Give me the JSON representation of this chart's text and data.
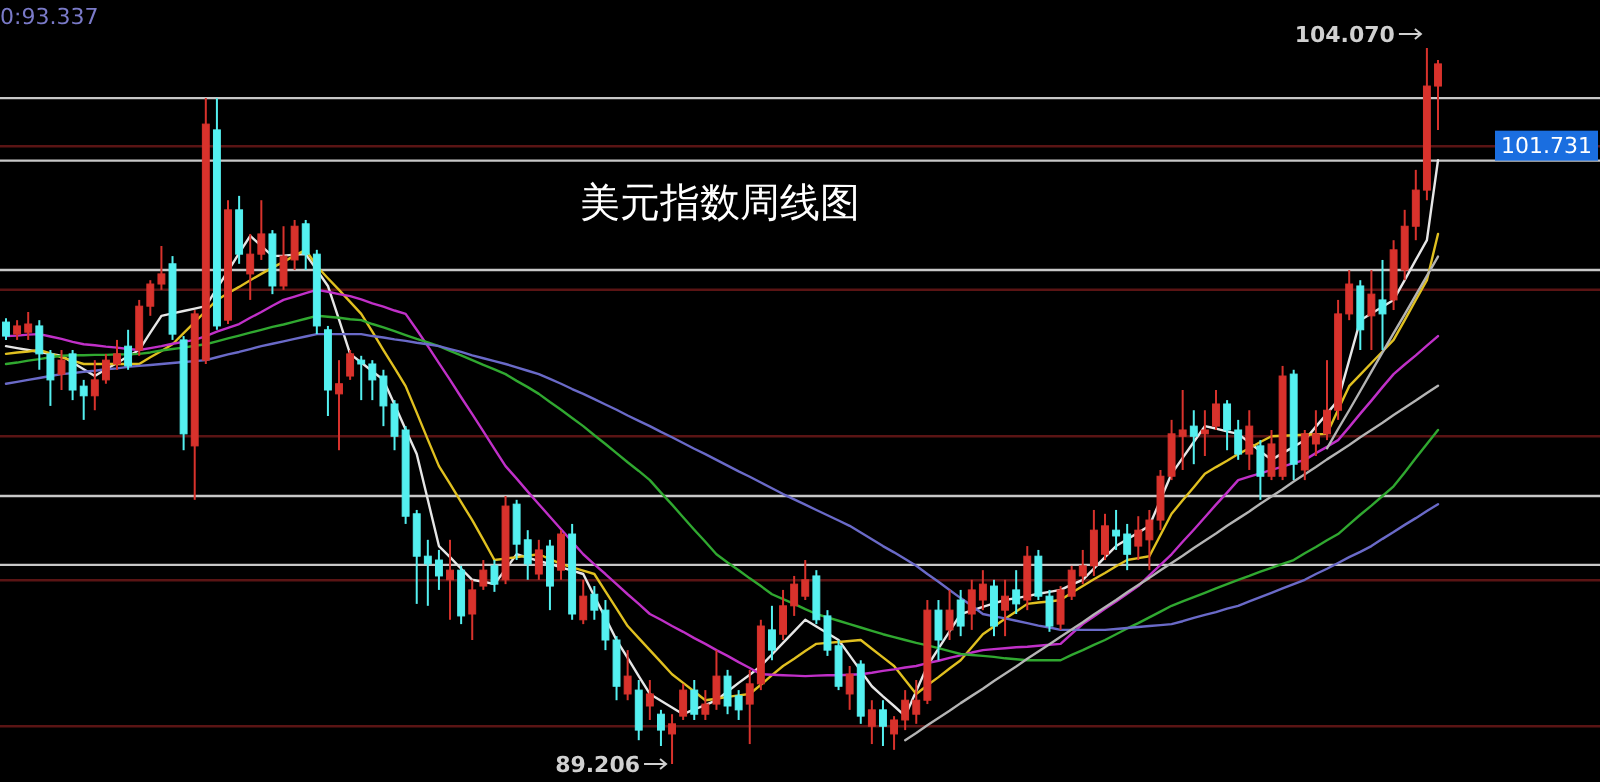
{
  "chart_data": {
    "type": "candlestick",
    "title": "美元指数周线图",
    "annotations": [
      "0:93.337",
      "104.070",
      "89.206"
    ],
    "categories": [
      null,
      null,
      null,
      null,
      null,
      null,
      null,
      null,
      null,
      null,
      null,
      null,
      null,
      null,
      null,
      null,
      null,
      null,
      null,
      null,
      null,
      null,
      null,
      null,
      null,
      null,
      null,
      null,
      null,
      null,
      null,
      null,
      null,
      null,
      null,
      null,
      null,
      null,
      null,
      null,
      null,
      null,
      null,
      null,
      null,
      null,
      null,
      null,
      null,
      null,
      null,
      null,
      null,
      null,
      null,
      null,
      null,
      null,
      null,
      null,
      null,
      null,
      null,
      null,
      null,
      null,
      null,
      null,
      null,
      null,
      null,
      null,
      null,
      null,
      null,
      null,
      null,
      null,
      null,
      null,
      null,
      null,
      null,
      null,
      null,
      null,
      null,
      null,
      null,
      null,
      null,
      null,
      null,
      null,
      null,
      null,
      null,
      null,
      null,
      null,
      null,
      null,
      null,
      null,
      null,
      null,
      null,
      null,
      null,
      null,
      null,
      null,
      null,
      null,
      null,
      null,
      null,
      null,
      null,
      null,
      null,
      null,
      null,
      null,
      null,
      null,
      null,
      null,
      null,
      null
    ],
    "ohlc": [
      [
        98.38,
        98.46,
        98.01,
        98.09
      ],
      [
        98.13,
        98.42,
        98.01,
        98.3
      ],
      [
        98.17,
        98.59,
        98.01,
        98.34
      ],
      [
        98.3,
        98.42,
        97.39,
        97.72
      ],
      [
        97.72,
        97.8,
        96.64,
        97.18
      ],
      [
        97.3,
        97.8,
        96.97,
        97.59
      ],
      [
        97.72,
        97.8,
        96.76,
        96.97
      ],
      [
        97.05,
        97.18,
        96.35,
        96.85
      ],
      [
        96.85,
        97.59,
        96.55,
        97.18
      ],
      [
        97.18,
        97.72,
        97.1,
        97.59
      ],
      [
        97.51,
        98.01,
        97.39,
        97.72
      ],
      [
        97.88,
        98.22,
        97.39,
        97.47
      ],
      [
        97.8,
        98.84,
        97.68,
        98.71
      ],
      [
        98.71,
        99.25,
        98.51,
        99.17
      ],
      [
        99.17,
        99.96,
        99.05,
        99.38
      ],
      [
        99.59,
        99.75,
        98.01,
        98.13
      ],
      [
        98.01,
        98.09,
        95.72,
        96.06
      ],
      [
        95.81,
        98.63,
        94.69,
        98.55
      ],
      [
        97.59,
        103.03,
        97.51,
        102.49
      ],
      [
        102.37,
        103.03,
        98.22,
        98.3
      ],
      [
        98.42,
        100.91,
        98.34,
        100.71
      ],
      [
        100.71,
        101.0,
        99.59,
        99.79
      ],
      [
        99.38,
        100.21,
        98.84,
        99.79
      ],
      [
        99.79,
        100.91,
        99.67,
        100.21
      ],
      [
        100.21,
        100.29,
        98.96,
        99.13
      ],
      [
        99.13,
        100.37,
        99.05,
        99.75
      ],
      [
        99.67,
        100.5,
        99.46,
        100.37
      ],
      [
        100.42,
        100.5,
        99.46,
        99.79
      ],
      [
        99.79,
        99.88,
        98.13,
        98.3
      ],
      [
        98.22,
        98.3,
        96.43,
        96.97
      ],
      [
        96.89,
        97.59,
        95.72,
        97.1
      ],
      [
        97.26,
        97.8,
        97.18,
        97.72
      ],
      [
        97.59,
        97.68,
        96.76,
        97.51
      ],
      [
        97.51,
        97.59,
        96.76,
        97.18
      ],
      [
        97.26,
        97.39,
        96.22,
        96.64
      ],
      [
        96.68,
        96.76,
        95.72,
        96.01
      ],
      [
        96.14,
        96.22,
        94.19,
        94.35
      ],
      [
        94.4,
        94.48,
        92.53,
        93.52
      ],
      [
        93.52,
        93.86,
        92.49,
        93.36
      ],
      [
        93.44,
        93.65,
        92.82,
        93.11
      ],
      [
        93.03,
        93.86,
        92.2,
        93.23
      ],
      [
        93.23,
        93.32,
        92.11,
        92.28
      ],
      [
        92.32,
        93.03,
        91.78,
        92.82
      ],
      [
        92.9,
        93.44,
        92.82,
        93.23
      ],
      [
        93.32,
        93.44,
        92.78,
        92.94
      ],
      [
        93.03,
        94.77,
        92.94,
        94.56
      ],
      [
        94.6,
        94.69,
        93.44,
        93.77
      ],
      [
        93.86,
        94.06,
        93.03,
        93.36
      ],
      [
        93.15,
        93.86,
        93.03,
        93.65
      ],
      [
        93.73,
        93.86,
        92.4,
        92.9
      ],
      [
        93.23,
        94.06,
        93.03,
        93.98
      ],
      [
        93.98,
        94.19,
        92.2,
        92.32
      ],
      [
        92.2,
        93.03,
        92.11,
        92.69
      ],
      [
        92.73,
        92.9,
        92.2,
        92.4
      ],
      [
        92.4,
        92.61,
        91.57,
        91.78
      ],
      [
        91.78,
        91.86,
        90.53,
        90.82
      ],
      [
        90.66,
        91.57,
        90.53,
        91.03
      ],
      [
        90.74,
        90.95,
        89.7,
        89.91
      ],
      [
        90.41,
        90.95,
        90.12,
        90.66
      ],
      [
        90.24,
        90.33,
        89.58,
        89.91
      ],
      [
        89.83,
        90.24,
        89.206,
        90.04
      ],
      [
        90.2,
        90.87,
        90.12,
        90.74
      ],
      [
        90.74,
        90.95,
        90.12,
        90.24
      ],
      [
        90.24,
        90.74,
        90.12,
        90.45
      ],
      [
        90.45,
        91.57,
        90.33,
        91.03
      ],
      [
        91.03,
        91.16,
        90.24,
        90.41
      ],
      [
        90.62,
        90.74,
        90.12,
        90.33
      ],
      [
        90.45,
        91.16,
        89.62,
        90.87
      ],
      [
        90.87,
        92.2,
        90.74,
        92.07
      ],
      [
        91.99,
        92.49,
        91.36,
        91.57
      ],
      [
        91.9,
        92.82,
        91.78,
        92.49
      ],
      [
        92.49,
        93.11,
        92.28,
        92.94
      ],
      [
        92.69,
        93.44,
        92.61,
        93.03
      ],
      [
        93.11,
        93.23,
        92.11,
        92.2
      ],
      [
        92.28,
        92.4,
        91.45,
        91.57
      ],
      [
        91.66,
        91.78,
        90.74,
        90.82
      ],
      [
        90.66,
        91.24,
        90.33,
        91.07
      ],
      [
        91.28,
        91.36,
        90.04,
        90.2
      ],
      [
        89.99,
        90.53,
        89.62,
        90.33
      ],
      [
        90.33,
        90.53,
        89.58,
        89.99
      ],
      [
        89.83,
        90.2,
        89.5,
        90.12
      ],
      [
        90.12,
        90.74,
        89.91,
        90.53
      ],
      [
        90.24,
        90.95,
        90.04,
        90.53
      ],
      [
        90.53,
        92.61,
        90.45,
        92.4
      ],
      [
        92.4,
        92.61,
        91.36,
        91.78
      ],
      [
        91.99,
        92.82,
        91.78,
        92.4
      ],
      [
        92.61,
        92.82,
        91.86,
        92.07
      ],
      [
        92.32,
        93.03,
        91.99,
        92.82
      ],
      [
        92.61,
        93.23,
        92.4,
        92.94
      ],
      [
        92.9,
        93.03,
        91.86,
        92.07
      ],
      [
        92.4,
        93.03,
        91.86,
        92.69
      ],
      [
        92.82,
        93.23,
        92.32,
        92.53
      ],
      [
        92.61,
        93.73,
        92.4,
        93.52
      ],
      [
        93.52,
        93.65,
        92.61,
        92.69
      ],
      [
        92.69,
        92.82,
        91.95,
        92.07
      ],
      [
        92.11,
        92.9,
        91.99,
        92.82
      ],
      [
        92.69,
        93.32,
        92.61,
        93.23
      ],
      [
        93.11,
        93.65,
        92.94,
        93.32
      ],
      [
        93.32,
        94.48,
        93.11,
        94.06
      ],
      [
        93.56,
        94.4,
        93.44,
        94.15
      ],
      [
        94.06,
        94.48,
        93.65,
        93.94
      ],
      [
        93.98,
        94.19,
        93.23,
        93.56
      ],
      [
        93.73,
        94.35,
        93.44,
        94.06
      ],
      [
        93.86,
        94.48,
        93.23,
        94.27
      ],
      [
        94.27,
        95.31,
        94.06,
        95.18
      ],
      [
        95.18,
        96.35,
        95.1,
        96.06
      ],
      [
        96.01,
        96.97,
        95.31,
        96.14
      ],
      [
        96.22,
        96.55,
        95.43,
        96.01
      ],
      [
        96.06,
        96.55,
        95.6,
        96.14
      ],
      [
        96.22,
        96.97,
        96.14,
        96.68
      ],
      [
        96.68,
        96.76,
        95.72,
        96.14
      ],
      [
        96.14,
        96.35,
        95.52,
        95.64
      ],
      [
        95.64,
        96.55,
        95.31,
        96.22
      ],
      [
        95.81,
        95.93,
        94.69,
        95.18
      ],
      [
        95.18,
        96.14,
        95.1,
        95.85
      ],
      [
        95.18,
        97.47,
        95.1,
        97.26
      ],
      [
        97.3,
        97.39,
        95.1,
        95.43
      ],
      [
        95.31,
        96.14,
        95.1,
        96.06
      ],
      [
        95.85,
        96.55,
        95.6,
        96.06
      ],
      [
        96.06,
        97.59,
        95.93,
        96.55
      ],
      [
        96.55,
        98.84,
        96.35,
        98.55
      ],
      [
        98.55,
        99.46,
        98.42,
        99.17
      ],
      [
        99.13,
        99.25,
        97.8,
        98.22
      ],
      [
        98.51,
        99.46,
        97.8,
        98.96
      ],
      [
        98.84,
        99.67,
        97.8,
        98.55
      ],
      [
        98.84,
        100.08,
        98.63,
        99.88
      ],
      [
        99.46,
        100.71,
        99.25,
        100.37
      ],
      [
        100.37,
        101.54,
        100.08,
        101.12
      ],
      [
        101.12,
        104.07,
        100.91,
        103.28
      ],
      [
        103.28,
        103.82,
        102.37,
        103.74
      ]
    ],
    "colors": [
      "#54f0f0",
      "#d8322c",
      "#d8322c",
      "#54f0f0",
      "#54f0f0",
      "#d8322c",
      "#54f0f0",
      "#54f0f0",
      "#d8322c",
      "#d8322c",
      "#d8322c",
      "#54f0f0",
      "#d8322c",
      "#d8322c",
      "#d8322c",
      "#54f0f0",
      "#54f0f0",
      "#d8322c",
      "#d8322c",
      "#54f0f0",
      "#d8322c",
      "#54f0f0",
      "#d8322c",
      "#d8322c",
      "#54f0f0",
      "#d8322c",
      "#d8322c",
      "#54f0f0",
      "#54f0f0",
      "#54f0f0",
      "#d8322c",
      "#d8322c",
      "#54f0f0",
      "#54f0f0",
      "#54f0f0",
      "#54f0f0",
      "#54f0f0",
      "#54f0f0",
      "#54f0f0",
      "#54f0f0",
      "#d8322c",
      "#54f0f0",
      "#d8322c",
      "#d8322c",
      "#54f0f0",
      "#d8322c",
      "#54f0f0",
      "#54f0f0",
      "#d8322c",
      "#54f0f0",
      "#d8322c",
      "#54f0f0",
      "#d8322c",
      "#54f0f0",
      "#54f0f0",
      "#54f0f0",
      "#d8322c",
      "#54f0f0",
      "#d8322c",
      "#54f0f0",
      "#d8322c",
      "#d8322c",
      "#54f0f0",
      "#d8322c",
      "#d8322c",
      "#54f0f0",
      "#54f0f0",
      "#d8322c",
      "#d8322c",
      "#54f0f0",
      "#d8322c",
      "#d8322c",
      "#d8322c",
      "#54f0f0",
      "#54f0f0",
      "#54f0f0",
      "#d8322c",
      "#54f0f0",
      "#d8322c",
      "#54f0f0",
      "#d8322c",
      "#d8322c",
      "#d8322c",
      "#d8322c",
      "#54f0f0",
      "#d8322c",
      "#54f0f0",
      "#d8322c",
      "#d8322c",
      "#54f0f0",
      "#d8322c",
      "#54f0f0",
      "#d8322c",
      "#54f0f0",
      "#54f0f0",
      "#d8322c",
      "#d8322c",
      "#d8322c",
      "#d8322c",
      "#d8322c",
      "#54f0f0",
      "#54f0f0",
      "#d8322c",
      "#d8322c",
      "#d8322c",
      "#d8322c",
      "#d8322c",
      "#54f0f0",
      "#d8322c",
      "#d8322c",
      "#54f0f0",
      "#54f0f0",
      "#d8322c",
      "#54f0f0",
      "#d8322c",
      "#d8322c",
      "#54f0f0",
      "#d8322c",
      "#d8322c",
      "#d8322c",
      "#d8322c",
      "#d8322c",
      "#54f0f0",
      "#d8322c",
      "#54f0f0",
      "#d8322c",
      "#d8322c",
      "#d8322c",
      "#d8322c",
      "#d8322c"
    ],
    "series": [
      {
        "type": "line",
        "color": "#e6e6e6",
        "values": [
          97.88,
          97.84,
          97.8,
          97.76,
          97.72,
          97.68,
          97.54,
          97.4,
          97.26,
          97.4,
          97.53,
          97.67,
          97.8,
          98.16,
          98.51,
          98.56,
          98.61,
          98.66,
          98.71,
          99.08,
          99.44,
          99.81,
          100.17,
          99.96,
          99.75,
          99.76,
          99.78,
          99.79,
          99.46,
          99.13,
          98.43,
          97.72,
          97.54,
          97.36,
          97.18,
          96.67,
          96.15,
          95.64,
          94.69,
          93.73,
          93.5,
          93.26,
          93.03,
          92.99,
          92.94,
          93.25,
          93.56,
          93.49,
          93.42,
          93.36,
          93.29,
          93.22,
          93.15,
          92.69,
          92.24,
          91.78,
          91.41,
          91.03,
          90.66,
          90.52,
          90.38,
          90.24,
          90.34,
          90.43,
          90.53,
          90.71,
          90.89,
          91.06,
          91.24,
          91.48,
          91.72,
          91.96,
          92.2,
          92.06,
          91.92,
          91.78,
          91.46,
          91.14,
          90.82,
          90.61,
          90.41,
          90.2,
          90.72,
          91.24,
          91.6,
          91.96,
          92.32,
          92.39,
          92.47,
          92.54,
          92.61,
          92.65,
          92.69,
          92.74,
          92.78,
          92.82,
          92.93,
          93.03,
          93.26,
          93.5,
          93.73,
          93.87,
          94.01,
          94.15,
          94.69,
          95.23,
          95.56,
          95.89,
          96.22,
          96.17,
          96.11,
          96.06,
          95.88,
          95.7,
          95.52,
          95.66,
          95.79,
          95.93,
          96.21,
          96.48,
          96.76,
          97.59,
          98.42,
          98.56,
          98.7,
          98.84,
          99.25,
          99.67,
          100.08,
          101.74
        ]
      },
      {
        "type": "line",
        "color": "#e0c020",
        "values": [
          97.72,
          97.75,
          97.77,
          97.8,
          97.73,
          97.65,
          97.58,
          97.51,
          97.51,
          97.51,
          97.51,
          97.51,
          97.51,
          97.65,
          97.78,
          97.92,
          98.15,
          98.38,
          98.61,
          98.84,
          98.98,
          99.11,
          99.25,
          99.38,
          99.51,
          99.63,
          99.76,
          99.88,
          99.54,
          99.29,
          99.05,
          98.8,
          98.55,
          98.18,
          97.8,
          97.43,
          97.05,
          96.5,
          95.94,
          95.39,
          95.02,
          94.64,
          94.27,
          93.86,
          93.44,
          93.47,
          93.5,
          93.53,
          93.56,
          93.46,
          93.36,
          93.29,
          93.22,
          93.15,
          92.79,
          92.43,
          92.07,
          91.82,
          91.57,
          91.32,
          91.07,
          90.89,
          90.71,
          90.53,
          90.56,
          90.6,
          90.63,
          90.66,
          90.85,
          91.05,
          91.24,
          91.39,
          91.55,
          91.7,
          91.72,
          91.74,
          91.76,
          91.78,
          91.6,
          91.42,
          91.24,
          90.95,
          90.66,
          90.84,
          91.01,
          91.19,
          91.36,
          91.63,
          91.9,
          92.06,
          92.22,
          92.37,
          92.53,
          92.56,
          92.58,
          92.61,
          92.76,
          92.9,
          93.04,
          93.17,
          93.31,
          93.44,
          93.48,
          93.52,
          93.96,
          94.4,
          94.68,
          94.95,
          95.23,
          95.37,
          95.5,
          95.64,
          95.76,
          95.89,
          96.01,
          96.02,
          96.03,
          96.04,
          96.05,
          96.06,
          96.56,
          97.05,
          97.29,
          97.53,
          97.77,
          98.01,
          98.42,
          98.84,
          99.25,
          100.21
        ]
      },
      {
        "type": "line",
        "color": "#c030c8",
        "values": [
          98.09,
          98.1,
          98.12,
          98.13,
          98.08,
          98.03,
          97.97,
          97.92,
          97.9,
          97.87,
          97.85,
          97.82,
          97.8,
          97.84,
          97.88,
          97.93,
          97.97,
          98.01,
          98.09,
          98.18,
          98.26,
          98.34,
          98.47,
          98.59,
          98.72,
          98.84,
          98.91,
          98.98,
          99.05,
          99.01,
          98.96,
          98.92,
          98.85,
          98.77,
          98.7,
          98.62,
          98.55,
          98.22,
          97.88,
          97.53,
          97.18,
          96.82,
          96.47,
          96.11,
          95.75,
          95.39,
          95.13,
          94.86,
          94.6,
          94.34,
          94.08,
          93.82,
          93.56,
          93.35,
          93.15,
          92.94,
          92.73,
          92.53,
          92.32,
          92.2,
          92.07,
          91.95,
          91.82,
          91.7,
          91.57,
          91.45,
          91.32,
          91.2,
          91.07,
          91.06,
          91.05,
          91.04,
          91.03,
          91.04,
          91.05,
          91.05,
          91.06,
          91.07,
          91.1,
          91.14,
          91.17,
          91.21,
          91.24,
          91.3,
          91.35,
          91.41,
          91.46,
          91.52,
          91.57,
          91.59,
          91.61,
          91.63,
          91.64,
          91.66,
          91.68,
          91.7,
          91.91,
          92.11,
          92.27,
          92.43,
          92.58,
          92.74,
          92.9,
          93.12,
          93.34,
          93.56,
          93.82,
          94.07,
          94.33,
          94.59,
          94.84,
          95.1,
          95.17,
          95.24,
          95.31,
          95.38,
          95.45,
          95.52,
          95.66,
          95.79,
          95.93,
          96.2,
          96.48,
          96.75,
          97.03,
          97.3,
          97.5,
          97.69,
          97.89,
          98.09
        ]
      },
      {
        "type": "line",
        "color": "#30a830",
        "values": [
          97.51,
          97.54,
          97.58,
          97.61,
          97.65,
          97.68,
          97.69,
          97.69,
          97.7,
          97.7,
          97.71,
          97.71,
          97.72,
          97.75,
          97.79,
          97.82,
          97.85,
          97.89,
          97.92,
          97.98,
          98.04,
          98.1,
          98.16,
          98.22,
          98.28,
          98.33,
          98.39,
          98.45,
          98.51,
          98.49,
          98.47,
          98.44,
          98.42,
          98.34,
          98.27,
          98.19,
          98.11,
          98.03,
          97.96,
          97.88,
          97.78,
          97.69,
          97.59,
          97.49,
          97.4,
          97.3,
          97.16,
          97.03,
          96.89,
          96.72,
          96.56,
          96.39,
          96.22,
          96.03,
          95.85,
          95.66,
          95.47,
          95.29,
          95.1,
          94.84,
          94.59,
          94.33,
          94.07,
          93.82,
          93.56,
          93.39,
          93.23,
          93.06,
          92.9,
          92.73,
          92.63,
          92.53,
          92.42,
          92.32,
          92.25,
          92.18,
          92.11,
          92.04,
          91.97,
          91.9,
          91.84,
          91.78,
          91.72,
          91.67,
          91.61,
          91.55,
          91.49,
          91.47,
          91.45,
          91.43,
          91.4,
          91.38,
          91.36,
          91.36,
          91.36,
          91.36,
          91.47,
          91.57,
          91.68,
          91.78,
          91.9,
          92.02,
          92.13,
          92.25,
          92.37,
          92.49,
          92.58,
          92.67,
          92.76,
          92.85,
          92.94,
          93.03,
          93.11,
          93.2,
          93.28,
          93.36,
          93.44,
          93.58,
          93.71,
          93.85,
          93.98,
          94.18,
          94.38,
          94.57,
          94.77,
          94.97,
          95.26,
          95.56,
          95.85,
          96.14
        ]
      },
      {
        "type": "line",
        "color": "#6a6ac8",
        "values": [
          97.1,
          97.14,
          97.18,
          97.22,
          97.26,
          97.3,
          97.32,
          97.35,
          97.37,
          97.4,
          97.42,
          97.45,
          97.47,
          97.49,
          97.51,
          97.53,
          97.55,
          97.57,
          97.59,
          97.65,
          97.71,
          97.76,
          97.82,
          97.88,
          97.93,
          97.98,
          98.03,
          98.08,
          98.13,
          98.13,
          98.13,
          98.13,
          98.13,
          98.09,
          98.06,
          98.02,
          97.99,
          97.95,
          97.92,
          97.88,
          97.82,
          97.76,
          97.69,
          97.63,
          97.57,
          97.51,
          97.44,
          97.37,
          97.3,
          97.2,
          97.1,
          96.99,
          96.89,
          96.78,
          96.67,
          96.56,
          96.44,
          96.33,
          96.22,
          96.1,
          95.99,
          95.87,
          95.75,
          95.64,
          95.52,
          95.4,
          95.28,
          95.17,
          95.05,
          94.93,
          94.81,
          94.7,
          94.59,
          94.48,
          94.37,
          94.26,
          94.15,
          94.01,
          93.87,
          93.73,
          93.6,
          93.46,
          93.32,
          93.15,
          92.99,
          92.82,
          92.65,
          92.49,
          92.32,
          92.27,
          92.23,
          92.18,
          92.13,
          92.08,
          92.04,
          91.99,
          91.99,
          91.99,
          91.99,
          91.99,
          92.01,
          92.03,
          92.05,
          92.07,
          92.09,
          92.11,
          92.17,
          92.24,
          92.3,
          92.36,
          92.43,
          92.49,
          92.58,
          92.67,
          92.76,
          92.85,
          92.94,
          93.03,
          93.15,
          93.26,
          93.38,
          93.5,
          93.61,
          93.73,
          93.88,
          94.02,
          94.17,
          94.31,
          94.46,
          94.6
        ]
      },
      {
        "type": "line",
        "color": "#b4b4b4",
        "values": [
          null,
          null,
          null,
          null,
          null,
          null,
          null,
          null,
          null,
          null,
          null,
          null,
          null,
          null,
          null,
          null,
          null,
          null,
          null,
          null,
          null,
          null,
          null,
          null,
          null,
          null,
          null,
          null,
          null,
          null,
          null,
          null,
          null,
          null,
          null,
          null,
          null,
          null,
          null,
          null,
          null,
          null,
          null,
          null,
          null,
          null,
          null,
          null,
          null,
          null,
          null,
          null,
          null,
          null,
          null,
          null,
          null,
          null,
          null,
          null,
          null,
          null,
          null,
          null,
          null,
          null,
          null,
          null,
          null,
          null,
          null,
          null,
          null,
          null,
          null,
          null,
          null,
          null,
          null,
          null,
          null,
          null,
          null,
          null,
          null,
          null,
          null,
          null,
          null,
          null,
          null,
          null,
          null,
          null,
          null,
          null,
          null,
          null,
          null,
          null,
          null,
          null,
          null,
          null,
          null,
          null,
          null,
          null,
          null,
          null,
          null,
          null,
          null,
          null,
          null,
          null,
          null,
          null,
          null,
          95.76,
          96.16,
          96.55,
          96.95,
          97.35,
          97.75,
          98.15,
          98.54,
          98.94,
          99.34,
          99.74
        ]
      },
      {
        "type": "line",
        "color": "#b4b4b4",
        "values": [
          null,
          null,
          null,
          null,
          null,
          null,
          null,
          null,
          null,
          null,
          null,
          null,
          null,
          null,
          null,
          null,
          null,
          null,
          null,
          null,
          null,
          null,
          null,
          null,
          null,
          null,
          null,
          null,
          null,
          null,
          null,
          null,
          null,
          null,
          null,
          null,
          null,
          null,
          null,
          null,
          null,
          null,
          null,
          null,
          null,
          null,
          null,
          null,
          null,
          null,
          null,
          null,
          null,
          null,
          null,
          null,
          null,
          null,
          null,
          null,
          null,
          null,
          null,
          null,
          null,
          null,
          null,
          null,
          null,
          null,
          null,
          null,
          null,
          null,
          null,
          null,
          null,
          null,
          null,
          null,
          null,
          89.7,
          89.85,
          90.01,
          90.16,
          90.31,
          90.47,
          90.62,
          90.77,
          90.93,
          91.08,
          91.23,
          91.39,
          91.54,
          91.69,
          91.85,
          92.0,
          92.15,
          92.31,
          92.46,
          92.61,
          92.77,
          92.92,
          93.07,
          93.23,
          93.38,
          93.53,
          93.69,
          93.84,
          93.99,
          94.15,
          94.3,
          94.45,
          94.61,
          94.76,
          94.91,
          95.07,
          95.22,
          95.37,
          95.53,
          95.68,
          95.83,
          95.99,
          96.14,
          96.29,
          96.45,
          96.6,
          96.75,
          96.91,
          97.06
        ]
      }
    ],
    "ref_lines": [
      {
        "axis": "y",
        "value": 103.03,
        "color": "#c8c8c8"
      },
      {
        "axis": "y",
        "value": 101.731,
        "label": "101.731",
        "color": "#c8c8c8"
      },
      {
        "axis": "y",
        "value": 99.46,
        "color": "#c8c8c8"
      },
      {
        "axis": "y",
        "value": 94.77,
        "color": "#c8c8c8"
      },
      {
        "axis": "y",
        "value": 93.34,
        "color": "#c8c8c8"
      },
      {
        "axis": "y",
        "value": 102.03,
        "color": "#5a1414"
      },
      {
        "axis": "y",
        "value": 99.05,
        "color": "#5a1414"
      },
      {
        "axis": "y",
        "value": 96.01,
        "color": "#5a1414"
      },
      {
        "axis": "y",
        "value": 93.02,
        "color": "#5a1414"
      },
      {
        "axis": "y",
        "value": 89.99,
        "color": "#5a1414"
      }
    ]
  }
}
